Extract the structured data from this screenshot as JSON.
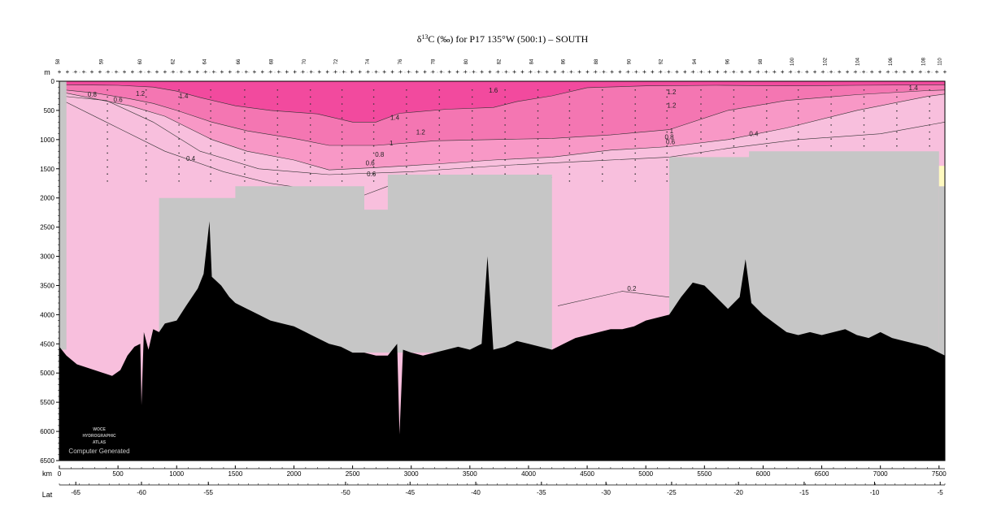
{
  "chart_data": {
    "type": "heatmap",
    "title_prefix": "δ",
    "title_sup": "13",
    "title_suffix": "C (‰) for P17 135°W (500:1) – SOUTH",
    "y_axis_label": "m",
    "x_axis_label": "km",
    "lat_axis_label": "Lat",
    "ylim": [
      6500,
      0
    ],
    "xlim": [
      0,
      7550
    ],
    "y_ticks": [
      0,
      500,
      1000,
      1500,
      2000,
      2500,
      3000,
      3500,
      4000,
      4500,
      5000,
      5500,
      6000,
      6500
    ],
    "x_ticks": [
      0,
      500,
      1000,
      1500,
      2000,
      2500,
      3000,
      3500,
      4000,
      4500,
      5000,
      5500,
      6000,
      6500,
      7000,
      7500
    ],
    "lat_ticks": [
      {
        "km": 140,
        "label": "-65"
      },
      {
        "km": 700,
        "label": "-60"
      },
      {
        "km": 1270,
        "label": "-55"
      },
      {
        "km": 2440,
        "label": "-50"
      },
      {
        "km": 2990,
        "label": "-45"
      },
      {
        "km": 3550,
        "label": "-40"
      },
      {
        "km": 4110,
        "label": "-35"
      },
      {
        "km": 4660,
        "label": "-30"
      },
      {
        "km": 5220,
        "label": "-25"
      },
      {
        "km": 5790,
        "label": "-20"
      },
      {
        "km": 6350,
        "label": "-15"
      },
      {
        "km": 6950,
        "label": "-10"
      },
      {
        "km": 7510,
        "label": "-5"
      }
    ],
    "station_labels": [
      {
        "km": 0,
        "label": "58"
      },
      {
        "km": 370,
        "label": "59"
      },
      {
        "km": 700,
        "label": "60"
      },
      {
        "km": 980,
        "label": "62"
      },
      {
        "km": 1250,
        "label": "64"
      },
      {
        "km": 1540,
        "label": "66"
      },
      {
        "km": 1820,
        "label": "68"
      },
      {
        "km": 2100,
        "label": "70"
      },
      {
        "km": 2370,
        "label": "72"
      },
      {
        "km": 2640,
        "label": "74"
      },
      {
        "km": 2920,
        "label": "76"
      },
      {
        "km": 3200,
        "label": "78"
      },
      {
        "km": 3480,
        "label": "80"
      },
      {
        "km": 3760,
        "label": "82"
      },
      {
        "km": 4040,
        "label": "84"
      },
      {
        "km": 4310,
        "label": "86"
      },
      {
        "km": 4590,
        "label": "88"
      },
      {
        "km": 4870,
        "label": "90"
      },
      {
        "km": 5140,
        "label": "92"
      },
      {
        "km": 5430,
        "label": "94"
      },
      {
        "km": 5710,
        "label": "96"
      },
      {
        "km": 5990,
        "label": "98"
      },
      {
        "km": 6260,
        "label": "100"
      },
      {
        "km": 6540,
        "label": "102"
      },
      {
        "km": 6820,
        "label": "104"
      },
      {
        "km": 7100,
        "label": "106"
      },
      {
        "km": 7380,
        "label": "108"
      },
      {
        "km": 7520,
        "label": "110"
      }
    ],
    "fill_levels": [
      {
        "min": 1.6,
        "color": "#f24a9e"
      },
      {
        "min": 1.2,
        "color": "#f476b2"
      },
      {
        "min": 0.8,
        "color": "#f898c6"
      },
      {
        "min": 0.0,
        "color": "#f8bfdd"
      }
    ],
    "contour_labels": [
      {
        "km": 280,
        "m": 220,
        "label": "0.8"
      },
      {
        "km": 500,
        "m": 310,
        "label": "0.6"
      },
      {
        "km": 690,
        "m": 210,
        "label": "1.2"
      },
      {
        "km": 1060,
        "m": 250,
        "label": "1.4"
      },
      {
        "km": 3700,
        "m": 150,
        "label": "1.6"
      },
      {
        "km": 2860,
        "m": 620,
        "label": "1.4"
      },
      {
        "km": 3080,
        "m": 870,
        "label": "1.2"
      },
      {
        "km": 2830,
        "m": 1060,
        "label": "1"
      },
      {
        "km": 2730,
        "m": 1250,
        "label": "0.8"
      },
      {
        "km": 2650,
        "m": 1400,
        "label": "0.6"
      },
      {
        "km": 2660,
        "m": 1590,
        "label": "0.6"
      },
      {
        "km": 1120,
        "m": 1320,
        "label": "0.4"
      },
      {
        "km": 5220,
        "m": 180,
        "label": "1.2"
      },
      {
        "km": 5220,
        "m": 410,
        "label": "1.2"
      },
      {
        "km": 7280,
        "m": 110,
        "label": "1.4"
      },
      {
        "km": 5220,
        "m": 850,
        "label": "1"
      },
      {
        "km": 5200,
        "m": 950,
        "label": "0.8"
      },
      {
        "km": 5210,
        "m": 1040,
        "label": "0.6"
      },
      {
        "km": 5920,
        "m": 900,
        "label": "0.4"
      },
      {
        "km": 4880,
        "m": 3550,
        "label": "0.2"
      }
    ],
    "bathymetry": [
      [
        0,
        4550
      ],
      [
        60,
        4700
      ],
      [
        150,
        4850
      ],
      [
        300,
        4950
      ],
      [
        450,
        5050
      ],
      [
        520,
        4950
      ],
      [
        580,
        4700
      ],
      [
        640,
        4550
      ],
      [
        690,
        4500
      ],
      [
        700,
        5550
      ],
      [
        720,
        4300
      ],
      [
        760,
        4600
      ],
      [
        800,
        4250
      ],
      [
        850,
        4300
      ],
      [
        900,
        4150
      ],
      [
        1000,
        4100
      ],
      [
        1080,
        3850
      ],
      [
        1180,
        3550
      ],
      [
        1230,
        3300
      ],
      [
        1280,
        2400
      ],
      [
        1300,
        3350
      ],
      [
        1380,
        3500
      ],
      [
        1450,
        3700
      ],
      [
        1500,
        3800
      ],
      [
        1600,
        3900
      ],
      [
        1700,
        4000
      ],
      [
        1800,
        4100
      ],
      [
        1900,
        4150
      ],
      [
        2000,
        4200
      ],
      [
        2100,
        4300
      ],
      [
        2200,
        4400
      ],
      [
        2300,
        4500
      ],
      [
        2400,
        4550
      ],
      [
        2500,
        4650
      ],
      [
        2600,
        4650
      ],
      [
        2700,
        4700
      ],
      [
        2800,
        4700
      ],
      [
        2880,
        4500
      ],
      [
        2900,
        6050
      ],
      [
        2930,
        4600
      ],
      [
        3000,
        4650
      ],
      [
        3100,
        4700
      ],
      [
        3200,
        4650
      ],
      [
        3300,
        4600
      ],
      [
        3400,
        4550
      ],
      [
        3500,
        4600
      ],
      [
        3600,
        4500
      ],
      [
        3650,
        3000
      ],
      [
        3700,
        4600
      ],
      [
        3800,
        4550
      ],
      [
        3900,
        4450
      ],
      [
        4000,
        4500
      ],
      [
        4100,
        4550
      ],
      [
        4200,
        4600
      ],
      [
        4300,
        4500
      ],
      [
        4400,
        4400
      ],
      [
        4500,
        4350
      ],
      [
        4600,
        4300
      ],
      [
        4700,
        4250
      ],
      [
        4800,
        4250
      ],
      [
        4900,
        4200
      ],
      [
        5000,
        4100
      ],
      [
        5100,
        4050
      ],
      [
        5200,
        4000
      ],
      [
        5300,
        3700
      ],
      [
        5400,
        3450
      ],
      [
        5500,
        3500
      ],
      [
        5600,
        3700
      ],
      [
        5700,
        3900
      ],
      [
        5800,
        3700
      ],
      [
        5850,
        3050
      ],
      [
        5900,
        3800
      ],
      [
        6000,
        4000
      ],
      [
        6100,
        4150
      ],
      [
        6200,
        4300
      ],
      [
        6300,
        4350
      ],
      [
        6400,
        4300
      ],
      [
        6500,
        4350
      ],
      [
        6600,
        4300
      ],
      [
        6700,
        4250
      ],
      [
        6800,
        4350
      ],
      [
        6900,
        4400
      ],
      [
        7000,
        4300
      ],
      [
        7100,
        4400
      ],
      [
        7200,
        4450
      ],
      [
        7300,
        4500
      ],
      [
        7400,
        4550
      ],
      [
        7500,
        4650
      ],
      [
        7550,
        4700
      ]
    ],
    "no_data_regions": [
      [
        [
          0,
          0
        ],
        [
          60,
          0
        ],
        [
          60,
          4600
        ],
        [
          0,
          4600
        ]
      ],
      [
        [
          850,
          2000
        ],
        [
          1500,
          2000
        ],
        [
          1500,
          1800
        ],
        [
          2600,
          1800
        ],
        [
          2600,
          2200
        ],
        [
          2800,
          2200
        ],
        [
          2800,
          1600
        ],
        [
          4200,
          1600
        ],
        [
          4200,
          4650
        ],
        [
          850,
          4650
        ]
      ],
      [
        [
          5200,
          1300
        ],
        [
          5880,
          1300
        ],
        [
          5880,
          1200
        ],
        [
          7500,
          1200
        ],
        [
          7500,
          4700
        ],
        [
          5200,
          4700
        ]
      ],
      [
        [
          7500,
          1800
        ],
        [
          7550,
          1800
        ],
        [
          7550,
          6500
        ],
        [
          7500,
          6500
        ]
      ]
    ],
    "watermark_lines": [
      "WOCE",
      "HYDROGRAPHIC",
      "ATLAS"
    ],
    "watermark_caption": "Computer Generated"
  }
}
